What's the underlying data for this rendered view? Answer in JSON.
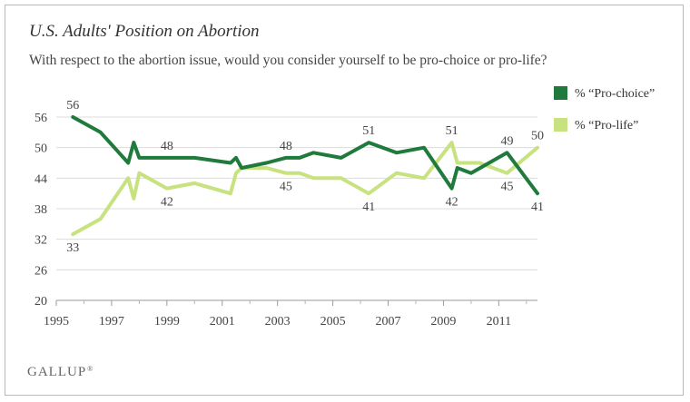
{
  "chart_data": {
    "type": "line",
    "title": "U.S. Adults' Position on Abortion",
    "subtitle": "With respect to the abortion issue, would you consider yourself to be pro-choice or pro-life?",
    "xlim": [
      1995,
      2012.4
    ],
    "ylim": [
      20,
      56
    ],
    "x_ticks": [
      "1995",
      "1997",
      "1999",
      "2001",
      "2003",
      "2005",
      "2007",
      "2009",
      "2011"
    ],
    "y_ticks": [
      "20",
      "26",
      "32",
      "38",
      "44",
      "50",
      "56"
    ],
    "grid": true,
    "legend_position": "right",
    "series": [
      {
        "name": "% “Pro-choice”",
        "color": "#1f7a3c",
        "points": [
          [
            1995.6,
            56
          ],
          [
            1996.6,
            53
          ],
          [
            1997.6,
            47
          ],
          [
            1997.8,
            51
          ],
          [
            1998.0,
            48
          ],
          [
            1999.0,
            48
          ],
          [
            2000.0,
            48
          ],
          [
            2001.3,
            47
          ],
          [
            2001.5,
            48
          ],
          [
            2001.7,
            46
          ],
          [
            2002.6,
            47
          ],
          [
            2003.3,
            48
          ],
          [
            2003.8,
            48
          ],
          [
            2004.3,
            49
          ],
          [
            2005.3,
            48
          ],
          [
            2006.3,
            51
          ],
          [
            2007.3,
            49
          ],
          [
            2008.3,
            50
          ],
          [
            2009.3,
            42
          ],
          [
            2009.5,
            46
          ],
          [
            2010.0,
            45
          ],
          [
            2011.3,
            49
          ],
          [
            2012.4,
            41
          ]
        ]
      },
      {
        "name": "% “Pro-life”",
        "color": "#c7e27f",
        "points": [
          [
            1995.6,
            33
          ],
          [
            1996.6,
            36
          ],
          [
            1997.6,
            44
          ],
          [
            1997.8,
            40
          ],
          [
            1998.0,
            45
          ],
          [
            1999.0,
            42
          ],
          [
            2000.0,
            43
          ],
          [
            2001.3,
            41
          ],
          [
            2001.5,
            45
          ],
          [
            2001.7,
            46
          ],
          [
            2002.6,
            46
          ],
          [
            2003.3,
            45
          ],
          [
            2003.8,
            45
          ],
          [
            2004.3,
            44
          ],
          [
            2005.3,
            44
          ],
          [
            2006.3,
            41
          ],
          [
            2007.3,
            45
          ],
          [
            2008.3,
            44
          ],
          [
            2009.3,
            51
          ],
          [
            2009.5,
            47
          ],
          [
            2010.3,
            47
          ],
          [
            2011.3,
            45
          ],
          [
            2012.4,
            50
          ]
        ]
      }
    ],
    "data_labels": [
      {
        "series": 0,
        "x": 1995.6,
        "y": 56,
        "text": "56",
        "pos": "above"
      },
      {
        "series": 0,
        "x": 1999.0,
        "y": 48,
        "text": "48",
        "pos": "above"
      },
      {
        "series": 0,
        "x": 2003.3,
        "y": 48,
        "text": "48",
        "pos": "above"
      },
      {
        "series": 0,
        "x": 2006.3,
        "y": 51,
        "text": "51",
        "pos": "above"
      },
      {
        "series": 0,
        "x": 2009.3,
        "y": 42,
        "text": "42",
        "pos": "below"
      },
      {
        "series": 0,
        "x": 2011.3,
        "y": 49,
        "text": "49",
        "pos": "above"
      },
      {
        "series": 0,
        "x": 2012.4,
        "y": 41,
        "text": "41",
        "pos": "below"
      },
      {
        "series": 1,
        "x": 1995.6,
        "y": 33,
        "text": "33",
        "pos": "below"
      },
      {
        "series": 1,
        "x": 1999.0,
        "y": 42,
        "text": "42",
        "pos": "below"
      },
      {
        "series": 1,
        "x": 2003.3,
        "y": 45,
        "text": "45",
        "pos": "below"
      },
      {
        "series": 1,
        "x": 2006.3,
        "y": 41,
        "text": "41",
        "pos": "below"
      },
      {
        "series": 1,
        "x": 2009.3,
        "y": 51,
        "text": "51",
        "pos": "above"
      },
      {
        "series": 1,
        "x": 2011.3,
        "y": 45,
        "text": "45",
        "pos": "below"
      },
      {
        "series": 1,
        "x": 2012.4,
        "y": 50,
        "text": "50",
        "pos": "above"
      }
    ]
  },
  "footer": {
    "brand": "GALLUP",
    "brand_mark": "®"
  }
}
